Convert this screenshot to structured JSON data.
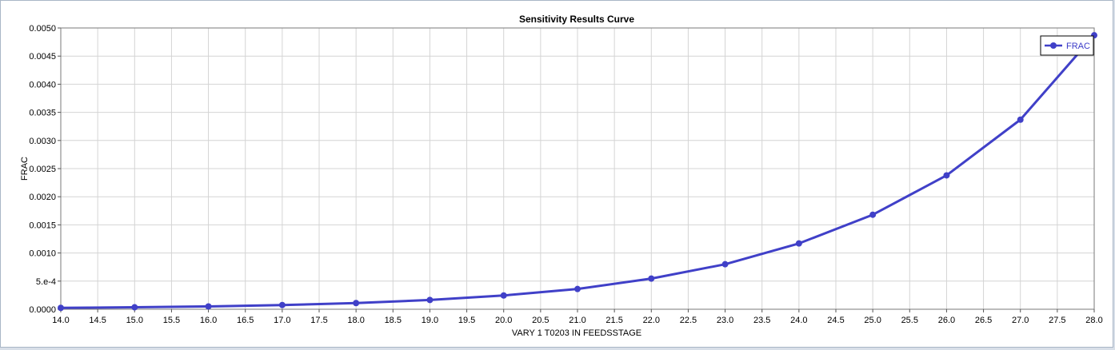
{
  "chart_data": {
    "type": "line",
    "title": "Sensitivity Results Curve",
    "xlabel": "VARY   1 T0203 IN FEEDSSTAGE",
    "ylabel": "FRAC",
    "xlim": [
      14.0,
      28.0
    ],
    "ylim": [
      0.0,
      0.005
    ],
    "grid": true,
    "legend_position": "top-right",
    "x_ticks": [
      "14.0",
      "14.5",
      "15.0",
      "15.5",
      "16.0",
      "16.5",
      "17.0",
      "17.5",
      "18.0",
      "18.5",
      "19.0",
      "19.5",
      "20.0",
      "20.5",
      "21.0",
      "21.5",
      "22.0",
      "22.5",
      "23.0",
      "23.5",
      "24.0",
      "24.5",
      "25.0",
      "25.5",
      "26.0",
      "26.5",
      "27.0",
      "27.5",
      "28.0"
    ],
    "y_ticks": [
      "0.0000",
      "5.e-4",
      "0.0010",
      "0.0015",
      "0.0020",
      "0.0025",
      "0.0030",
      "0.0035",
      "0.0040",
      "0.0045",
      "0.0050"
    ],
    "series": [
      {
        "name": "FRAC",
        "color": "#4040c8",
        "x": [
          14,
          15,
          16,
          17,
          18,
          19,
          20,
          21,
          22,
          23,
          24,
          25,
          26,
          27,
          28
        ],
        "values": [
          2.5e-05,
          3.5e-05,
          5e-05,
          7.5e-05,
          0.00011,
          0.000165,
          0.000245,
          0.00036,
          0.000545,
          0.0008,
          0.00117,
          0.00168,
          0.00238,
          0.00337,
          0.00487
        ]
      }
    ]
  }
}
